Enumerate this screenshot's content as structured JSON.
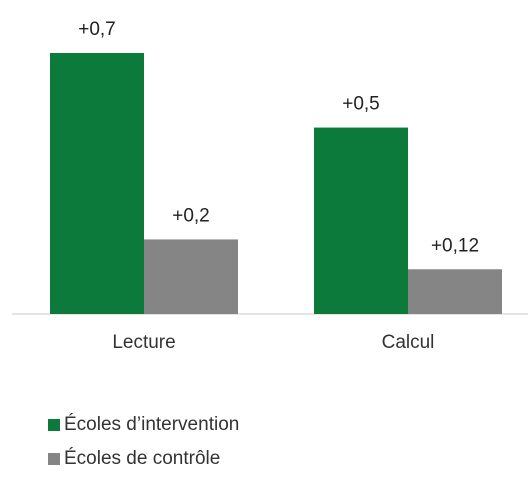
{
  "chart_data": {
    "type": "bar",
    "categories": [
      "Lecture",
      "Calcul"
    ],
    "series": [
      {
        "name": "Écoles d’intervention",
        "color": "#0b7a3a",
        "values": [
          0.7,
          0.5
        ],
        "labels": [
          "+0,7",
          "+0,5"
        ]
      },
      {
        "name": "Écoles de contrôle",
        "color": "#858585",
        "values": [
          0.2,
          0.12
        ],
        "labels": [
          "+0,2",
          "+0,12"
        ]
      }
    ],
    "ylim": [
      0,
      0.7
    ],
    "grid": false,
    "legend_position": "bottom-left"
  }
}
